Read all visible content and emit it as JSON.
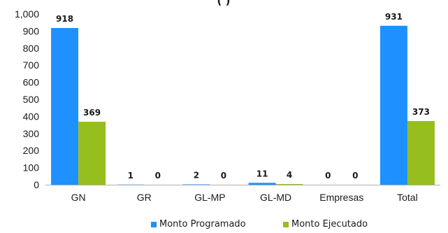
{
  "chart_data": {
    "type": "bar",
    "title": "(                    )",
    "categories": [
      "GN",
      "GR",
      "GL-MP",
      "GL-MD",
      "Empresas",
      "Total"
    ],
    "series": [
      {
        "name": "Monto Programado",
        "values": [
          918,
          1,
          2,
          11,
          0,
          931
        ],
        "labels": [
          "918",
          "1",
          "2",
          "11",
          "0",
          "931"
        ],
        "color": "#1e90ff"
      },
      {
        "name": "Monto Ejecutado",
        "values": [
          369,
          0,
          0,
          4,
          0,
          373
        ],
        "labels": [
          "369",
          "0",
          "0",
          "4",
          "0",
          "373"
        ],
        "color": "#96be1e"
      }
    ],
    "ylim": [
      0,
      1000
    ],
    "yticks": [
      "0",
      "100",
      "200",
      "300",
      "400",
      "500",
      "600",
      "700",
      "800",
      "900",
      "1,000"
    ],
    "grid": false,
    "legend_position": "bottom"
  }
}
